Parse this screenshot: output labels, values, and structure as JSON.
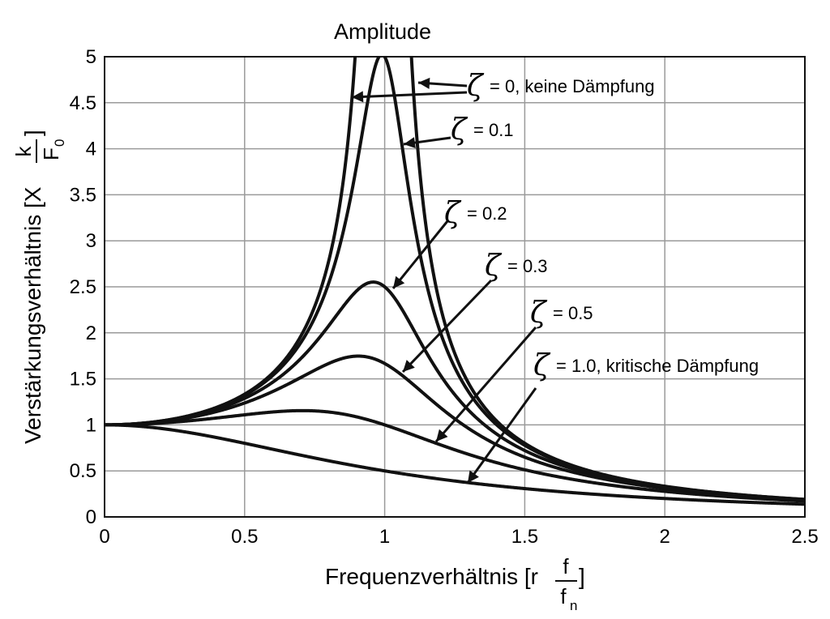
{
  "chart_data": {
    "type": "line",
    "title": "Amplitude",
    "xlabel": {
      "main": "Frequenzverhältnis [r",
      "num": "f",
      "den": "f",
      "den_sub": "n",
      "close": "]"
    },
    "ylabel": {
      "main": "Verstärkungsverhältnis [X",
      "num": "k",
      "den": "F",
      "den_sub": "0",
      "close": "]"
    },
    "xlim": [
      0,
      2.5
    ],
    "ylim": [
      0,
      5
    ],
    "x_ticks": [
      "0",
      "0.5",
      "1",
      "1.5",
      "2",
      "2.5"
    ],
    "y_ticks": [
      "0",
      "0.5",
      "1",
      "1.5",
      "2",
      "2.5",
      "3",
      "3.5",
      "4",
      "4.5",
      "5"
    ],
    "grid": true,
    "series": [
      {
        "zeta": 0,
        "label": "= 0, keine Dämpfung"
      },
      {
        "zeta": 0.1,
        "label": "= 0.1"
      },
      {
        "zeta": 0.2,
        "label": "= 0.2"
      },
      {
        "zeta": 0.3,
        "label": "= 0.3"
      },
      {
        "zeta": 0.5,
        "label": "= 0.5"
      },
      {
        "zeta": 1.0,
        "label": "= 1.0, kritische Dämpfung"
      }
    ],
    "zeta_symbol": "ζ",
    "line_color": "#111111",
    "grid_color": "#9a9a9a"
  }
}
